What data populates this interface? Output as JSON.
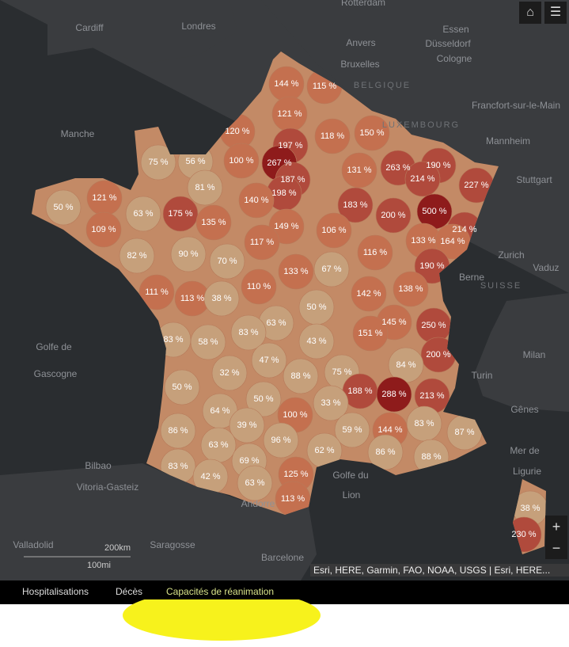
{
  "departments": [
    "144 %",
    "115 %",
    "121 %",
    "120 %",
    "197 %",
    "118 %",
    "150 %",
    "75 %",
    "56 %",
    "100 %",
    "267 %",
    "131 %",
    "263 %",
    "190 %",
    "214 %",
    "227 %",
    "121 %",
    "187 %",
    "198 %",
    "81 %",
    "50 %",
    "63 %",
    "175 %",
    "140 %",
    "183 %",
    "200 %",
    "500 %",
    "135 %",
    "149 %",
    "106 %",
    "214 %",
    "109 %",
    "133 %",
    "164 %",
    "82 %",
    "90 %",
    "70 %",
    "117 %",
    "116 %",
    "133 %",
    "67 %",
    "190 %",
    "111 %",
    "113 %",
    "38 %",
    "110 %",
    "142 %",
    "138 %",
    "50 %",
    "145 %",
    "250 %",
    "63 %",
    "83 %",
    "83 %",
    "58 %",
    "151 %",
    "43 %",
    "200 %",
    "47 %",
    "84 %",
    "75 %",
    "88 %",
    "32 %",
    "50 %",
    "188 %",
    "288 %",
    "213 %",
    "33 %",
    "50 %",
    "100 %",
    "64 %",
    "86 %",
    "39 %",
    "59 %",
    "144 %",
    "83 %",
    "87 %",
    "63 %",
    "96 %",
    "62 %",
    "86 %",
    "88 %",
    "69 %",
    "83 %",
    "42 %",
    "125 %",
    "63 %",
    "113 %",
    "38 %",
    "230 %"
  ],
  "places": [
    "Cardiff",
    "Londres",
    "Rotterdam",
    "Essen",
    "Anvers",
    "Düsseldorf",
    "Bruxelles",
    "Cologne",
    "BELGIQUE",
    "Francfort-sur-le-Main",
    "LUXEMBOURG",
    "Manche",
    "Mannheim",
    "Stuttgart",
    "Zurich",
    "Vaduz",
    "Berne",
    "SUISSE",
    "Golfe de",
    "Gascogne",
    "Milan",
    "Turin",
    "Gênes",
    "Mer de",
    "Ligurie",
    "Bilbao",
    "Vitoria-Gasteiz",
    "Valladolid",
    "Saragosse",
    "Andorre",
    "Barcelone",
    "Golfe du",
    "Lion"
  ],
  "scale": {
    "km": "200km",
    "mi": "100mi"
  },
  "attribution": "Esri, HERE, Garmin, FAO, NOAA, USGS | Esri, HERE...",
  "zoom": {
    "in": "+",
    "out": "−"
  },
  "tabs": [
    "Hospitalisations",
    "Décès",
    "Capacités de réanimation"
  ]
}
